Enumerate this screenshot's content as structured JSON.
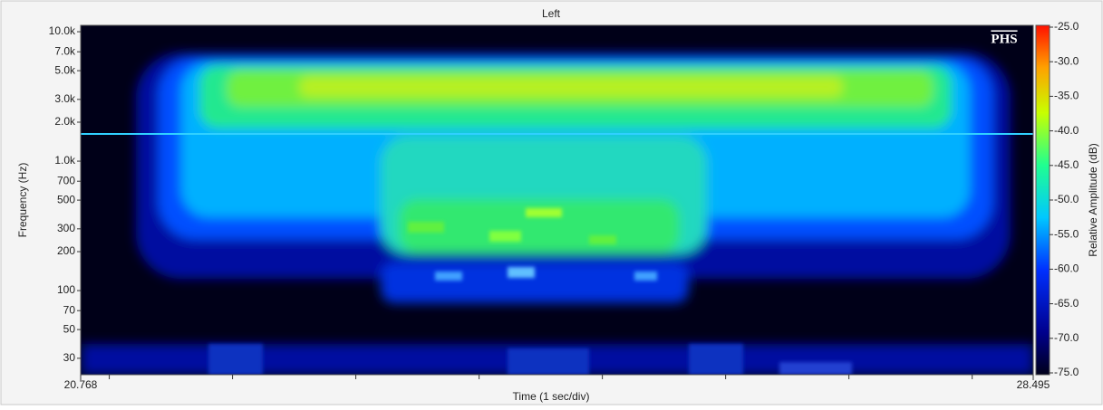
{
  "chart_data": {
    "type": "spectrogram",
    "title": "Left",
    "xlabel": "Time (1 sec/div)",
    "ylabel": "Frequency (Hz)",
    "colorbar_label": "Relative Amplitude (dB)",
    "watermark": "PHS",
    "xlim": [
      20.768,
      28.495
    ],
    "xticks": [
      20.768,
      28.495
    ],
    "x_minor_ticks": [
      21,
      22,
      23,
      24,
      25,
      26,
      27,
      28
    ],
    "yscale": "log",
    "ylim": [
      22.4,
      11200
    ],
    "yticks": [
      30,
      50,
      70,
      100,
      200,
      300,
      500,
      700,
      {
        "value": 1000,
        "label": "1.0k"
      },
      {
        "value": 2000,
        "label": "2.0k"
      },
      {
        "value": 3000,
        "label": "3.0k"
      },
      {
        "value": 5000,
        "label": "5.0k"
      },
      {
        "value": 7000,
        "label": "7.0k"
      },
      {
        "value": 10000,
        "label": "10.0k"
      }
    ],
    "clim": [
      -75.26,
      -24.74
    ],
    "cticks": [
      {
        "value": -25,
        "label": "-25.0"
      },
      {
        "value": -30,
        "label": "-30.0"
      },
      {
        "value": -35,
        "label": "-35.0"
      },
      {
        "value": -40,
        "label": "-40.0"
      },
      {
        "value": -45,
        "label": "-45.0"
      },
      {
        "value": -50,
        "label": "-50.0"
      },
      {
        "value": -55,
        "label": "-55.0"
      },
      {
        "value": -60,
        "label": "-60.0"
      },
      {
        "value": -65,
        "label": "-65.0"
      },
      {
        "value": -70,
        "label": "-70.0"
      },
      {
        "value": -75,
        "label": "-75.0"
      }
    ]
  }
}
